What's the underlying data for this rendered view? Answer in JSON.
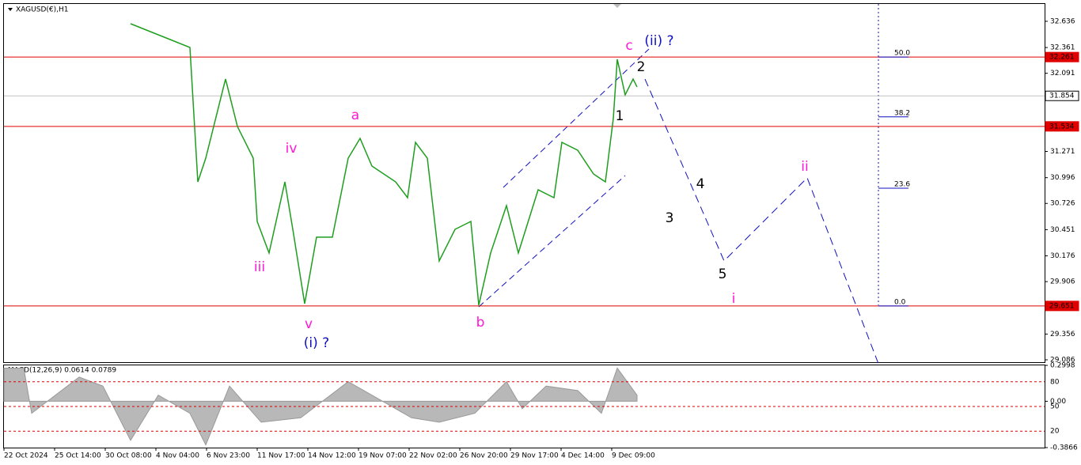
{
  "chart_data": {
    "type": "line",
    "title": "XAGUSD(€),H1",
    "xlim": [
      0,
      328.75
    ],
    "ylim": [
      32.818,
      29.061
    ],
    "xticks": [
      {
        "value": 0,
        "label": "22 Oct 2024"
      },
      {
        "value": 16,
        "label": "25 Oct 14:00"
      },
      {
        "value": 32,
        "label": "30 Oct 08:00"
      },
      {
        "value": 48,
        "label": "4 Nov 04:00"
      },
      {
        "value": 64,
        "label": "6 Nov 23:00"
      },
      {
        "value": 80,
        "label": "11 Nov 17:00"
      },
      {
        "value": 96,
        "label": "14 Nov 12:00"
      },
      {
        "value": 112,
        "label": "19 Nov 07:00"
      },
      {
        "value": 128,
        "label": "22 Nov 02:00"
      },
      {
        "value": 144,
        "label": "26 Nov 20:00"
      },
      {
        "value": 160,
        "label": "29 Nov 17:00"
      },
      {
        "value": 176,
        "label": "4 Dec 14:00"
      },
      {
        "value": 192,
        "label": "9 Dec 09:00"
      }
    ],
    "yticks": [
      32.636,
      32.361,
      32.091,
      31.271,
      30.996,
      30.726,
      30.451,
      30.176,
      29.906,
      29.356,
      29.086
    ],
    "series": [
      {
        "color": "#1e9e1e",
        "dash": false,
        "x": [
          40,
          46.25,
          52.5,
          58.75,
          61.25,
          63.75,
          70,
          73.75,
          78.75,
          80,
          83.75,
          88.75,
          91.25,
          95,
          98.75,
          103.75,
          108.75,
          112.5,
          116.25,
          123.75,
          127.5,
          130,
          133.75,
          137.5,
          142.5,
          147.5,
          150,
          153.75,
          158.75,
          162.5,
          168.75,
          173.75,
          176.25,
          181.25,
          186.25,
          190,
          192.5,
          193.75,
          196.25,
          198.75,
          200
        ],
        "values": [
          32.611,
          32.528,
          32.445,
          32.362,
          30.952,
          31.201,
          32.031,
          31.533,
          31.201,
          30.537,
          30.206,
          30.952,
          30.454,
          29.675,
          30.372,
          30.372,
          31.201,
          31.408,
          31.118,
          30.952,
          30.786,
          31.367,
          31.201,
          30.123,
          30.454,
          30.537,
          29.658,
          30.206,
          30.703,
          30.206,
          30.869,
          30.786,
          31.367,
          31.284,
          31.035,
          30.952,
          31.616,
          32.238,
          31.865,
          32.031,
          31.948
        ]
      },
      {
        "color": "#1010c0",
        "dash": true,
        "x": [
          202.5,
          227.5,
          253.75,
          276.25
        ],
        "values": [
          32.031,
          30.123,
          30.994,
          29.045
        ]
      }
    ],
    "hlines": [
      {
        "value": 32.261,
        "color": "#e00000"
      },
      {
        "value": 31.854,
        "color": "#c0c0c0"
      },
      {
        "value": 31.534,
        "color": "#e00000"
      },
      {
        "value": 29.651,
        "color": "#e00000"
      }
    ],
    "fib": [
      {
        "label": "50.0",
        "value": 32.261
      },
      {
        "label": "38.2",
        "value": 31.634
      },
      {
        "label": "23.6",
        "value": 30.886
      },
      {
        "label": "0.0",
        "value": 29.651
      }
    ]
  },
  "waves": [
    "c",
    "(ii) ?",
    "2",
    "1",
    "a",
    "iv",
    "iii",
    "v",
    "(i) ?",
    "b",
    "4",
    "3",
    "5",
    "i",
    "ii"
  ],
  "macd": {
    "title": "MACD(12,26,9) 0.0614 0.0789",
    "ylim": [
      0.2998,
      -0.3866
    ],
    "yticks": [
      0.2998,
      {
        "value": 0,
        "label": "0.00"
      },
      -0.3866
    ],
    "levels_lim": [
      100,
      0
    ],
    "levels": [
      80,
      50,
      20
    ],
    "x": [
      0,
      6.25,
      8.75,
      23.75,
      31.25,
      40,
      48.75,
      58.75,
      63.75,
      71.25,
      81.25,
      93.75,
      108.75,
      116.25,
      128.75,
      137.5,
      148.75,
      158.75,
      163.75,
      171.25,
      181.25,
      188.75,
      193.75,
      200
    ],
    "values": [
      0.277,
      0.277,
      -0.1,
      0.202,
      0.127,
      -0.326,
      0.051,
      -0.1,
      -0.364,
      0.127,
      -0.175,
      -0.138,
      0.164,
      0.051,
      -0.138,
      -0.175,
      -0.1,
      0.164,
      -0.062,
      0.127,
      0.089,
      -0.1,
      0.277,
      0.051
    ]
  }
}
